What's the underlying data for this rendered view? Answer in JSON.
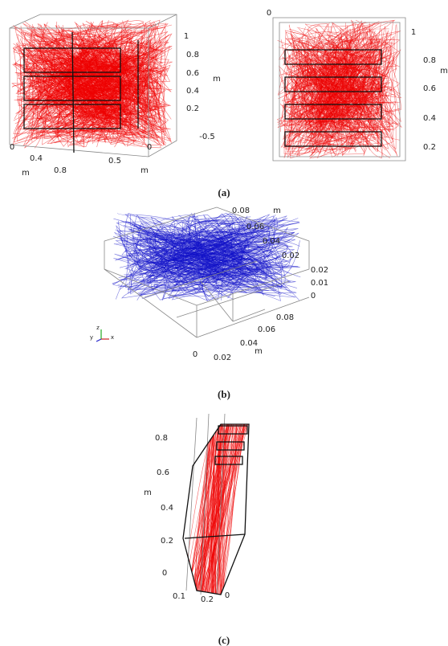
{
  "panels": [
    {
      "label": "(a)",
      "plots": [
        {
          "ticks": [
            "1",
            "0.8",
            "0.6",
            "0.4",
            "0.2",
            "-0.5",
            "0",
            "0.5",
            "m",
            "0",
            "0.4",
            "0.8",
            "m"
          ]
        },
        {
          "ticks": [
            "0",
            "1",
            "0.8",
            "m",
            "0.6",
            "0.4",
            "0.2",
            "m"
          ]
        }
      ]
    },
    {
      "label": "(b)",
      "plots": [
        {
          "ticks": [
            "0.08",
            "m",
            "0.06",
            "0.04",
            "0.02",
            "0.02",
            "0.01",
            "0",
            "0.08",
            "0.06",
            "0.04",
            "0.02",
            "0",
            "m"
          ],
          "triad": [
            "y",
            "z",
            "x"
          ]
        }
      ]
    },
    {
      "label": "(c)",
      "plots": [
        {
          "ticks": [
            "0.8",
            "0.6",
            "m",
            "0.4",
            "0.2",
            "0",
            "0.1",
            "0.2",
            "0"
          ]
        }
      ]
    }
  ]
}
